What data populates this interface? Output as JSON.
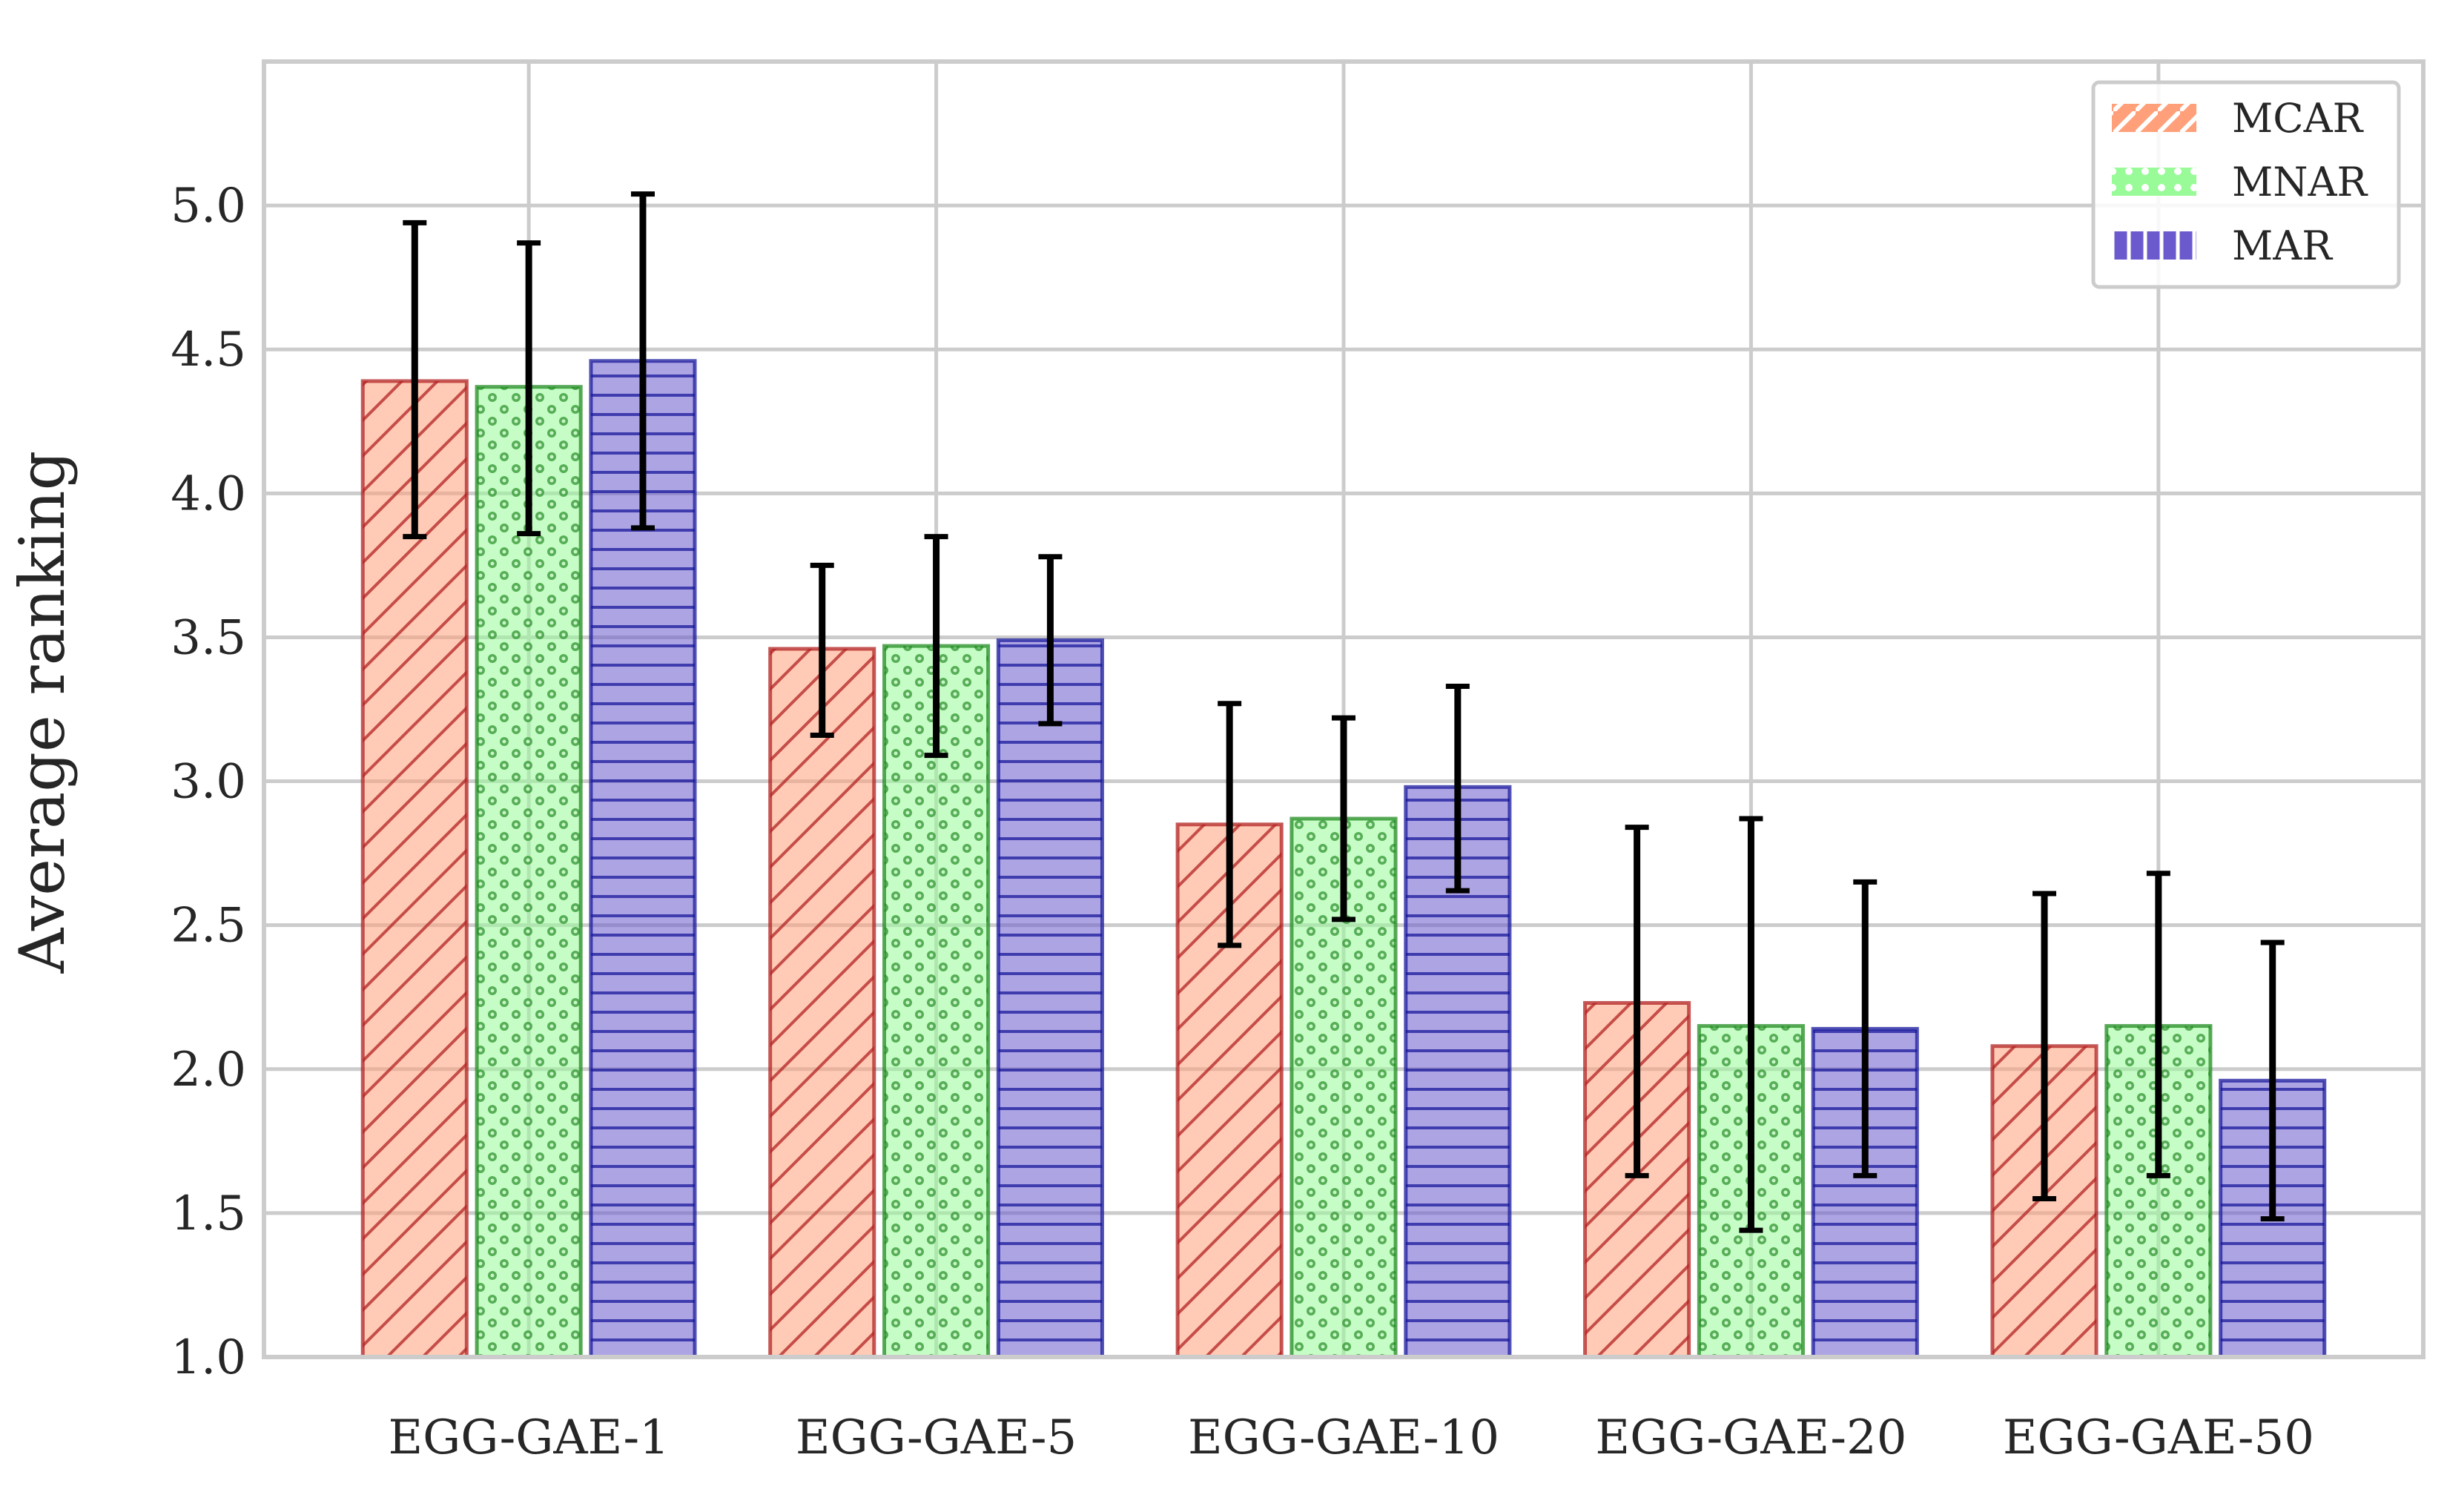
{
  "chart_data": {
    "type": "bar",
    "title": "",
    "xlabel": "",
    "ylabel": "Average ranking",
    "ylim": [
      1.0,
      5.5
    ],
    "yticks": [
      "1.0",
      "1.5",
      "2.0",
      "2.5",
      "3.0",
      "3.5",
      "4.0",
      "4.5",
      "5.0"
    ],
    "grid": true,
    "legend_position": "top-right",
    "categories": [
      "EGG-GAE-1",
      "EGG-GAE-5",
      "EGG-GAE-10",
      "EGG-GAE-20",
      "EGG-GAE-50"
    ],
    "series": [
      {
        "name": "MCAR",
        "values": [
          4.39,
          3.46,
          2.85,
          2.23,
          2.08
        ],
        "error_low": [
          3.85,
          3.16,
          2.43,
          1.63,
          1.55
        ],
        "error_high": [
          4.94,
          3.75,
          3.27,
          2.84,
          2.61
        ],
        "fill": "#ffa07a",
        "edge": "#b22222",
        "hatch": "diagonal"
      },
      {
        "name": "MNAR",
        "values": [
          4.37,
          3.47,
          2.87,
          2.15,
          2.15
        ],
        "error_low": [
          3.86,
          3.09,
          2.52,
          1.44,
          1.63
        ],
        "error_high": [
          4.87,
          3.85,
          3.22,
          2.87,
          2.68
        ],
        "fill": "#98fb98",
        "edge": "#228b22",
        "hatch": "dots"
      },
      {
        "name": "MAR",
        "values": [
          4.46,
          3.49,
          2.98,
          2.14,
          1.96
        ],
        "error_low": [
          3.88,
          3.2,
          2.62,
          1.63,
          1.48
        ],
        "error_high": [
          5.04,
          3.78,
          3.33,
          2.65,
          2.44
        ],
        "fill": "#6a5acd",
        "edge": "#1a1a9c",
        "hatch": "horizontal"
      }
    ]
  }
}
